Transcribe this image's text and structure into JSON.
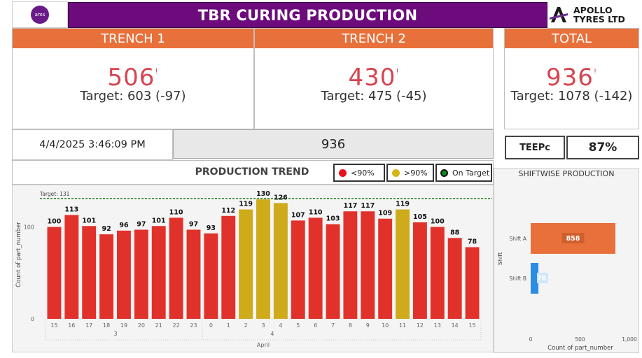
{
  "header": {
    "logo_text": "ams",
    "title": "TBR CURING PRODUCTION",
    "brand_line1": "APOLLO",
    "brand_line2": "TYRES LTD"
  },
  "kpis": {
    "trench1": {
      "label": "TRENCH 1",
      "value": "506",
      "target": "Target: 603 (-97)"
    },
    "trench2": {
      "label": "TRENCH 2",
      "value": "430",
      "target": "Target: 475 (-45)"
    },
    "total": {
      "label": "TOTAL",
      "value": "936",
      "target": "Target: 1078 (-142)"
    },
    "alert_mark": "!"
  },
  "datetime": "4/4/2025 3:46:09 PM",
  "total_strip": "936",
  "teep": {
    "label": "TEEPc",
    "value": "87%"
  },
  "trend": {
    "title": "PRODUCTION TREND",
    "legend": [
      {
        "label": "<90%",
        "color": "#e8101e"
      },
      {
        "label": ">90%",
        "color": "#d6b417"
      },
      {
        "label": "On Target",
        "color": "#0a8a1a"
      }
    ]
  },
  "shiftwise": {
    "title": "SHIFTWISE PRODUCTION"
  },
  "chart_data": [
    {
      "type": "bar",
      "title": "PRODUCTION TREND",
      "xlabel": "April",
      "ylabel": "Count of part_number",
      "ylim": [
        0,
        140
      ],
      "yticks": [
        0,
        100
      ],
      "target": {
        "label": "Target: 131",
        "value": 131,
        "color": "#2e8b2e"
      },
      "categories": [
        "15",
        "16",
        "17",
        "18",
        "19",
        "20",
        "21",
        "22",
        "23",
        "0",
        "1",
        "2",
        "3",
        "4",
        "5",
        "6",
        "7",
        "8",
        "9",
        "10",
        "11",
        "12",
        "13",
        "14",
        "15"
      ],
      "day_groups": [
        {
          "label": "3",
          "start": 0,
          "end": 8
        },
        {
          "label": "4",
          "start": 9,
          "end": 24
        }
      ],
      "values": [
        100,
        113,
        101,
        92,
        96,
        97,
        101,
        110,
        97,
        93,
        112,
        119,
        130,
        126,
        107,
        110,
        103,
        117,
        117,
        109,
        119,
        105,
        100,
        88,
        78
      ],
      "colors": {
        "below": "#e0322b",
        "near": "#cdab1b"
      },
      "near_indices": [
        11,
        12,
        13,
        20
      ]
    },
    {
      "type": "bar",
      "orientation": "horizontal",
      "title": "SHIFTWISE PRODUCTION",
      "xlabel": "Count of part_number",
      "ylabel": "Shift",
      "xlim": [
        0,
        1000
      ],
      "xticks": [
        "0",
        "500",
        "1,000"
      ],
      "categories": [
        "Shift A",
        "Shift B"
      ],
      "values": [
        858,
        78
      ],
      "colors": [
        "#e8703a",
        "#2b8ce6"
      ]
    }
  ]
}
